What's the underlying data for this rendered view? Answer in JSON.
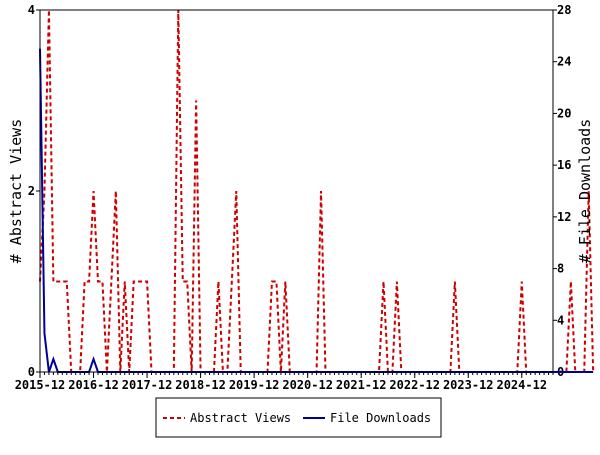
{
  "chart_data": {
    "type": "line",
    "x_tick_labels": [
      "2015-12",
      "2016-12",
      "2017-12",
      "2018-12",
      "2019-12",
      "2020-12",
      "2021-12",
      "2022-12",
      "2023-12",
      "2024-12"
    ],
    "left_axis": {
      "label": "# Abstract Views",
      "ylim": [
        0,
        4
      ],
      "ticks": [
        "0",
        "2",
        "4"
      ]
    },
    "right_axis": {
      "label": "# File Downloads",
      "ylim": [
        0,
        28
      ],
      "ticks": [
        "0",
        "4",
        "8",
        "12",
        "16",
        "20",
        "24",
        "28"
      ]
    },
    "x_range_months": [
      0,
      115
    ],
    "grid": false,
    "legend_position": "bottom",
    "series": [
      {
        "name": "Abstract Views",
        "axis": "left",
        "color": "#cc0000",
        "dash": "dashed",
        "values": [
          1,
          2,
          4,
          1,
          1,
          1,
          1,
          0,
          0,
          0,
          1,
          1,
          2,
          1,
          1,
          0,
          1,
          2,
          0,
          1,
          0,
          1,
          1,
          1,
          1,
          0,
          0,
          0,
          0,
          0,
          0,
          4,
          1,
          1,
          0,
          3,
          0,
          0,
          0,
          0,
          1,
          0,
          0,
          1,
          2,
          0,
          0,
          0,
          0,
          0,
          0,
          0,
          1,
          1,
          0,
          1,
          0,
          0,
          0,
          0,
          0,
          0,
          0,
          2,
          0,
          0,
          0,
          0,
          0,
          0,
          0,
          0,
          0,
          0,
          0,
          0,
          0,
          1,
          0,
          0,
          1,
          0,
          0,
          0,
          0,
          0,
          0,
          0,
          0,
          0,
          0,
          0,
          0,
          1,
          0,
          0,
          0,
          0,
          0,
          0,
          0,
          0,
          0,
          0,
          0,
          0,
          0,
          0,
          1,
          0,
          0,
          0,
          0,
          0,
          0,
          0,
          0,
          0,
          0,
          1,
          0,
          0,
          0,
          2,
          0
        ]
      },
      {
        "name": "File Downloads",
        "axis": "right",
        "color": "#000099",
        "dash": "solid",
        "values": [
          25,
          3,
          0,
          1,
          0,
          0,
          0,
          0,
          0,
          0,
          0,
          0,
          1,
          0,
          0,
          0,
          0,
          0,
          0,
          0,
          0,
          0,
          0,
          0,
          0,
          0,
          0,
          0,
          0,
          0,
          0,
          0,
          0,
          0,
          0,
          0,
          0,
          0,
          0,
          0,
          0,
          0,
          0,
          0,
          0,
          0,
          0,
          0,
          0,
          0,
          0,
          0,
          0,
          0,
          0,
          0,
          0,
          0,
          0,
          0,
          0,
          0,
          0,
          0,
          0,
          0,
          0,
          0,
          0,
          0,
          0,
          0,
          0,
          0,
          0,
          0,
          0,
          0,
          0,
          0,
          0,
          0,
          0,
          0,
          0,
          0,
          0,
          0,
          0,
          0,
          0,
          0,
          0,
          0,
          0,
          0,
          0,
          0,
          0,
          0,
          0,
          0,
          0,
          0,
          0,
          0,
          0,
          0,
          0,
          0,
          0,
          0,
          0,
          0,
          0,
          0,
          0,
          0,
          0,
          0,
          0,
          0,
          0,
          0,
          0
        ]
      }
    ]
  },
  "legend": {
    "items": [
      {
        "label": "Abstract Views"
      },
      {
        "label": "File Downloads"
      }
    ]
  }
}
